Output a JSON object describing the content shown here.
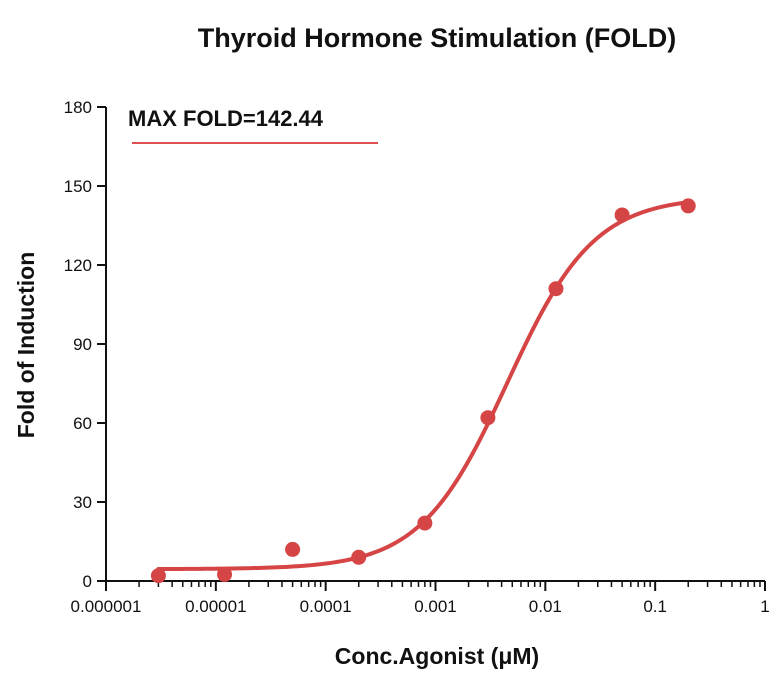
{
  "chart_data": {
    "type": "scatter",
    "title": "Thyroid Hormone Stimulation (FOLD)",
    "xlabel": "Conc.Agonist (μM)",
    "ylabel": "Fold of Induction",
    "x_scale": "log",
    "xlim": [
      1e-06,
      1
    ],
    "ylim": [
      0,
      180
    ],
    "x_ticks": [
      1e-06,
      1e-05,
      0.0001,
      0.001,
      0.01,
      0.1,
      1
    ],
    "x_tick_labels": [
      "0.000001",
      "0.00001",
      "0.0001",
      "0.001",
      "0.01",
      "0.1",
      "1"
    ],
    "y_ticks": [
      0,
      30,
      60,
      90,
      120,
      150,
      180
    ],
    "y_tick_labels": [
      "0",
      "30",
      "60",
      "90",
      "120",
      "150",
      "180"
    ],
    "grid": false,
    "series": [
      {
        "color": "#d64545",
        "points": [
          {
            "x": 3e-06,
            "y": 2
          },
          {
            "x": 1.2e-05,
            "y": 2.5
          },
          {
            "x": 5e-05,
            "y": 12
          },
          {
            "x": 0.0002,
            "y": 9
          },
          {
            "x": 0.0008,
            "y": 22
          },
          {
            "x": 0.003,
            "y": 62
          },
          {
            "x": 0.0125,
            "y": 111
          },
          {
            "x": 0.05,
            "y": 139
          },
          {
            "x": 0.2,
            "y": 142.44
          }
        ],
        "fit": {
          "model": "four-parameter logistic",
          "bottom": 4.5,
          "top": 146,
          "ec50": 0.0045,
          "hill": 1.1,
          "x_range": [
            3e-06,
            0.2
          ]
        }
      }
    ],
    "annotation": {
      "text": "MAX FOLD=142.44",
      "color": "#111111",
      "underline_color": "#e05050"
    }
  }
}
